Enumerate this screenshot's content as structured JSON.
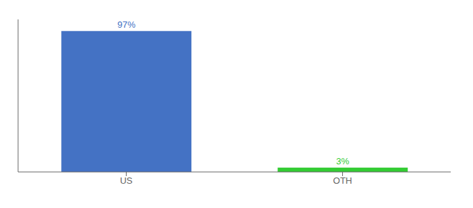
{
  "chart_data": {
    "type": "bar",
    "categories": [
      "US",
      "OTH"
    ],
    "values": [
      97,
      3
    ],
    "colors": [
      "#4472c4",
      "#33cc33"
    ],
    "value_labels": [
      "97%",
      "3%"
    ],
    "data_labels": true,
    "ylim": [
      0,
      105
    ],
    "tick_labels": "x"
  }
}
